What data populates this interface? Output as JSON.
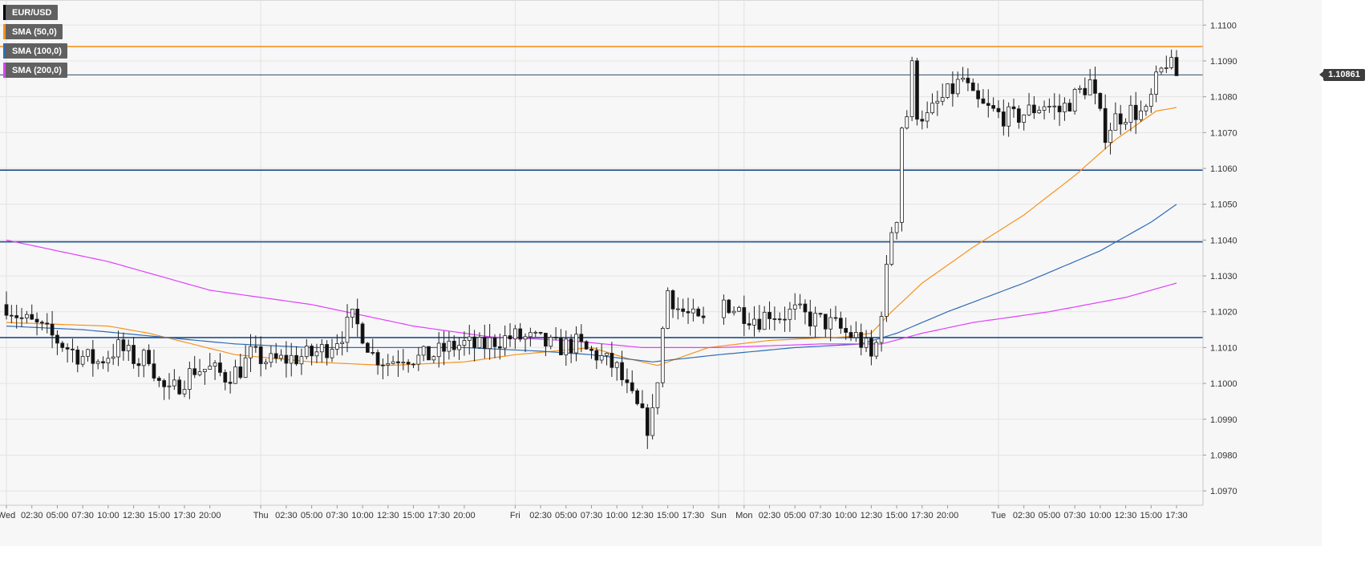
{
  "legend": [
    {
      "label": "EUR/USD",
      "color": "#000000"
    },
    {
      "label": "SMA (50,0)",
      "color": "#f7931e"
    },
    {
      "label": "SMA (100,0)",
      "color": "#2f6cb5"
    },
    {
      "label": "SMA (200,0)",
      "color": "#e040fb"
    }
  ],
  "last_price_label": "1.10861",
  "chart_data": {
    "type": "candlestick",
    "symbol": "EUR/USD",
    "ylim": [
      1.0966,
      1.1107
    ],
    "y_ticks": [
      "1.0970",
      "1.0980",
      "1.0990",
      "1.1000",
      "1.1010",
      "1.1020",
      "1.1030",
      "1.1040",
      "1.1050",
      "1.1060",
      "1.1070",
      "1.1080",
      "1.1090",
      "1.1100"
    ],
    "x_ticks": [
      {
        "i": 0,
        "label": "Wed"
      },
      {
        "i": 5,
        "label": "02:30"
      },
      {
        "i": 10,
        "label": "05:00"
      },
      {
        "i": 15,
        "label": "07:30"
      },
      {
        "i": 20,
        "label": "10:00"
      },
      {
        "i": 25,
        "label": "12:30"
      },
      {
        "i": 30,
        "label": "15:00"
      },
      {
        "i": 35,
        "label": "17:30"
      },
      {
        "i": 40,
        "label": "20:00"
      },
      {
        "i": 50,
        "label": "Thu"
      },
      {
        "i": 55,
        "label": "02:30"
      },
      {
        "i": 60,
        "label": "05:00"
      },
      {
        "i": 65,
        "label": "07:30"
      },
      {
        "i": 70,
        "label": "10:00"
      },
      {
        "i": 75,
        "label": "12:30"
      },
      {
        "i": 80,
        "label": "15:00"
      },
      {
        "i": 85,
        "label": "17:30"
      },
      {
        "i": 90,
        "label": "20:00"
      },
      {
        "i": 100,
        "label": "Fri"
      },
      {
        "i": 105,
        "label": "02:30"
      },
      {
        "i": 110,
        "label": "05:00"
      },
      {
        "i": 115,
        "label": "07:30"
      },
      {
        "i": 120,
        "label": "10:00"
      },
      {
        "i": 125,
        "label": "12:30"
      },
      {
        "i": 130,
        "label": "15:00"
      },
      {
        "i": 135,
        "label": "17:30"
      },
      {
        "i": 140,
        "label": "Sun"
      },
      {
        "i": 145,
        "label": "Mon"
      },
      {
        "i": 150,
        "label": "02:30"
      },
      {
        "i": 155,
        "label": "05:00"
      },
      {
        "i": 160,
        "label": "07:30"
      },
      {
        "i": 165,
        "label": "10:00"
      },
      {
        "i": 170,
        "label": "12:30"
      },
      {
        "i": 175,
        "label": "15:00"
      },
      {
        "i": 180,
        "label": "17:30"
      },
      {
        "i": 185,
        "label": "20:00"
      },
      {
        "i": 195,
        "label": "Tue"
      },
      {
        "i": 200,
        "label": "02:30"
      },
      {
        "i": 205,
        "label": "05:00"
      },
      {
        "i": 210,
        "label": "07:30"
      },
      {
        "i": 215,
        "label": "10:00"
      },
      {
        "i": 220,
        "label": "12:30"
      },
      {
        "i": 225,
        "label": "15:00"
      },
      {
        "i": 230,
        "label": "17:30"
      }
    ],
    "last_index": 230,
    "close_anchors": [
      [
        0,
        1.1022
      ],
      [
        3,
        1.1018
      ],
      [
        6,
        1.1016
      ],
      [
        10,
        1.1012
      ],
      [
        14,
        1.1008
      ],
      [
        18,
        1.1006
      ],
      [
        22,
        1.101
      ],
      [
        26,
        1.1006
      ],
      [
        28,
        1.1008
      ],
      [
        30,
        1.1
      ],
      [
        32,
        1.0997
      ],
      [
        34,
        1.1
      ],
      [
        37,
        1.1004
      ],
      [
        40,
        1.1004
      ],
      [
        43,
        1.1002
      ],
      [
        46,
        1.1004
      ],
      [
        48,
        1.1008
      ],
      [
        52,
        1.1006
      ],
      [
        56,
        1.1007
      ],
      [
        60,
        1.1008
      ],
      [
        63,
        1.101
      ],
      [
        66,
        1.1014
      ],
      [
        68,
        1.1018
      ],
      [
        70,
        1.1014
      ],
      [
        72,
        1.1008
      ],
      [
        75,
        1.1006
      ],
      [
        78,
        1.1008
      ],
      [
        81,
        1.1007
      ],
      [
        84,
        1.1008
      ],
      [
        87,
        1.101
      ],
      [
        90,
        1.1011
      ],
      [
        93,
        1.101
      ],
      [
        96,
        1.1012
      ],
      [
        100,
        1.1013
      ],
      [
        104,
        1.1012
      ],
      [
        108,
        1.101
      ],
      [
        112,
        1.1011
      ],
      [
        114,
        1.1009
      ],
      [
        116,
        1.1008
      ],
      [
        118,
        1.1006
      ],
      [
        120,
        1.1004
      ],
      [
        122,
        1.0998
      ],
      [
        124,
        1.0993
      ],
      [
        126,
        1.0988
      ],
      [
        127,
        1.0991
      ],
      [
        128,
        1.1002
      ],
      [
        129,
        1.1015
      ],
      [
        130,
        1.1026
      ],
      [
        132,
        1.1021
      ],
      [
        134,
        1.1019
      ],
      [
        136,
        1.1017
      ],
      [
        138,
        1.1017
      ],
      [
        141,
        1.1023
      ],
      [
        143,
        1.1021
      ],
      [
        146,
        1.1019
      ],
      [
        148,
        1.1018
      ],
      [
        150,
        1.102
      ],
      [
        152,
        1.1019
      ],
      [
        155,
        1.102
      ],
      [
        158,
        1.1018
      ],
      [
        161,
        1.1017
      ],
      [
        163,
        1.1016
      ],
      [
        165,
        1.1014
      ],
      [
        167,
        1.1013
      ],
      [
        169,
        1.101
      ],
      [
        170,
        1.1007
      ],
      [
        171,
        1.1011
      ],
      [
        172,
        1.1021
      ],
      [
        173,
        1.1031
      ],
      [
        174,
        1.1043
      ],
      [
        175,
        1.1047
      ],
      [
        176,
        1.1072
      ],
      [
        177,
        1.1075
      ],
      [
        178,
        1.1088
      ],
      [
        179,
        1.1076
      ],
      [
        181,
        1.1074
      ],
      [
        183,
        1.1078
      ],
      [
        186,
        1.1082
      ],
      [
        188,
        1.1085
      ],
      [
        190,
        1.1079
      ],
      [
        192,
        1.1077
      ],
      [
        195,
        1.1075
      ],
      [
        198,
        1.1074
      ],
      [
        201,
        1.1076
      ],
      [
        204,
        1.1078
      ],
      [
        207,
        1.1076
      ],
      [
        210,
        1.108
      ],
      [
        213,
        1.1084
      ],
      [
        215,
        1.1074
      ],
      [
        216,
        1.107
      ],
      [
        218,
        1.1074
      ],
      [
        221,
        1.1076
      ],
      [
        224,
        1.1075
      ],
      [
        226,
        1.1084
      ],
      [
        228,
        1.109
      ],
      [
        230,
        1.1086
      ]
    ],
    "series": [
      {
        "name": "SMA (50,0)",
        "color": "#f7931e",
        "points": [
          [
            0,
            1.1017
          ],
          [
            20,
            1.1016
          ],
          [
            28,
            1.1014
          ],
          [
            45,
            1.1008
          ],
          [
            60,
            1.1006
          ],
          [
            75,
            1.1005
          ],
          [
            90,
            1.1006
          ],
          [
            100,
            1.1008
          ],
          [
            115,
            1.101
          ],
          [
            122,
            1.1007
          ],
          [
            128,
            1.1005
          ],
          [
            138,
            1.101
          ],
          [
            150,
            1.1012
          ],
          [
            165,
            1.1013
          ],
          [
            170,
            1.1014
          ],
          [
            174,
            1.102
          ],
          [
            180,
            1.1028
          ],
          [
            190,
            1.1038
          ],
          [
            200,
            1.1047
          ],
          [
            210,
            1.1058
          ],
          [
            218,
            1.1068
          ],
          [
            222,
            1.1072
          ],
          [
            226,
            1.1076
          ],
          [
            230,
            1.1077
          ]
        ]
      },
      {
        "name": "SMA (100,0)",
        "color": "#2f6cb5",
        "points": [
          [
            0,
            1.1016
          ],
          [
            15,
            1.1015
          ],
          [
            30,
            1.1013
          ],
          [
            45,
            1.1011
          ],
          [
            60,
            1.101
          ],
          [
            75,
            1.101
          ],
          [
            90,
            1.101
          ],
          [
            105,
            1.1009
          ],
          [
            115,
            1.1008
          ],
          [
            127,
            1.1006
          ],
          [
            140,
            1.1008
          ],
          [
            155,
            1.101
          ],
          [
            168,
            1.1011
          ],
          [
            175,
            1.1014
          ],
          [
            185,
            1.102
          ],
          [
            200,
            1.1028
          ],
          [
            215,
            1.1037
          ],
          [
            225,
            1.1045
          ],
          [
            230,
            1.105
          ]
        ]
      },
      {
        "name": "SMA (200,0)",
        "color": "#e040fb",
        "points": [
          [
            0,
            1.104
          ],
          [
            20,
            1.1034
          ],
          [
            40,
            1.1026
          ],
          [
            60,
            1.1022
          ],
          [
            80,
            1.1016
          ],
          [
            95,
            1.1013
          ],
          [
            110,
            1.1012
          ],
          [
            125,
            1.101
          ],
          [
            140,
            1.101
          ],
          [
            160,
            1.1011
          ],
          [
            172,
            1.1011
          ],
          [
            180,
            1.1014
          ],
          [
            190,
            1.1017
          ],
          [
            205,
            1.102
          ],
          [
            220,
            1.1024
          ],
          [
            230,
            1.1028
          ]
        ]
      }
    ],
    "h_lines": [
      {
        "value": 1.1094,
        "color": "#f7931e"
      },
      {
        "value": 1.10861,
        "color": "#2d4a70"
      },
      {
        "value": 1.10595,
        "color": "#1f4e8c"
      },
      {
        "value": 1.10395,
        "color": "#1f4e8c"
      },
      {
        "value": 1.10128,
        "color": "#1f4e8c"
      }
    ]
  }
}
